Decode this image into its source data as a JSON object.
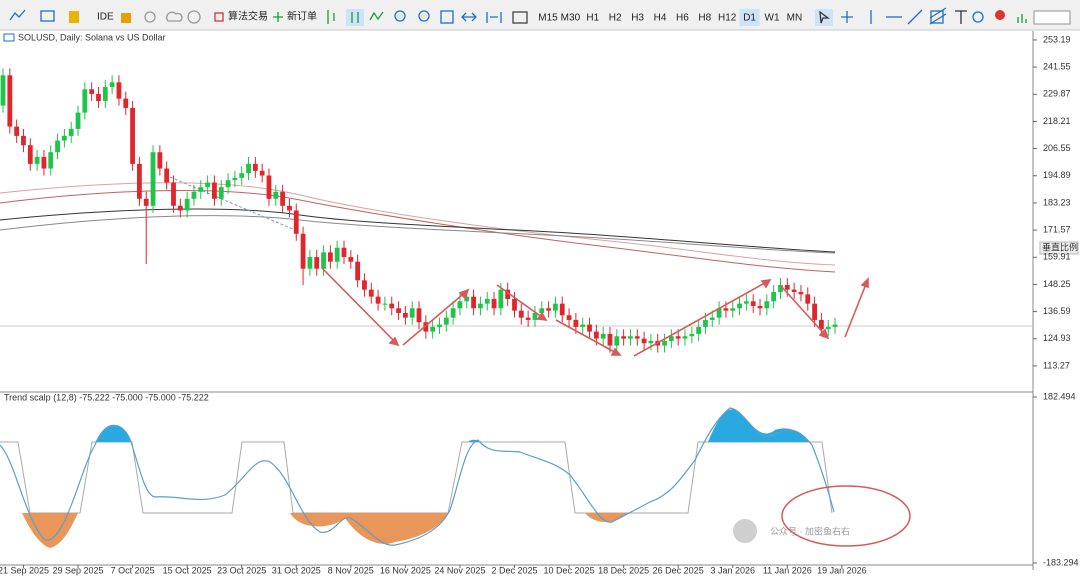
{
  "toolbar": {
    "ide": "IDE",
    "algo": "算法交易",
    "order": "新订单",
    "timeframes": [
      "M15",
      "M30",
      "H1",
      "H2",
      "H3",
      "H4",
      "H6",
      "H8",
      "H12",
      "D1",
      "W1",
      "MN"
    ],
    "active": "D1"
  },
  "chart_data": {
    "type": "candlestick",
    "title": "SOLUSD, Daily:  Solana vs US Dollar",
    "open": [
      225,
      238,
      216,
      212,
      208,
      200,
      203,
      198,
      205,
      210,
      212,
      215,
      222,
      232,
      230,
      227,
      233,
      235,
      228,
      224,
      200,
      185,
      182,
      205,
      198,
      192,
      182,
      180,
      185,
      188,
      190,
      192,
      185,
      190,
      193,
      194,
      196,
      200,
      197,
      195,
      185,
      188,
      182,
      180,
      170,
      155,
      160,
      155,
      162,
      158,
      164,
      160,
      158,
      150,
      146,
      143,
      140,
      140,
      138,
      136,
      134,
      138,
      132,
      128,
      130,
      131,
      134,
      138,
      141,
      143,
      138,
      140,
      142,
      138,
      146,
      142,
      137,
      134,
      133,
      136,
      138,
      137,
      140,
      135,
      133,
      130,
      131,
      128,
      125,
      127,
      122,
      126,
      125,
      126,
      125,
      123,
      124,
      122,
      124,
      126,
      125,
      126,
      127,
      130,
      133,
      134,
      138,
      137,
      138,
      140,
      141,
      139,
      138,
      141,
      145,
      148,
      146,
      145,
      144,
      140,
      133,
      129,
      130
    ],
    "high": [
      241,
      241,
      219,
      215,
      211,
      206,
      206,
      208,
      213,
      215,
      218,
      225,
      235,
      235,
      233,
      236,
      238,
      238,
      231,
      227,
      203,
      188,
      208,
      208,
      201,
      195,
      185,
      188,
      191,
      193,
      195,
      195,
      193,
      196,
      197,
      199,
      203,
      203,
      200,
      198,
      191,
      191,
      185,
      183,
      173,
      163,
      163,
      165,
      165,
      167,
      167,
      163,
      161,
      153,
      149,
      146,
      143,
      143,
      141,
      139,
      141,
      141,
      135,
      133,
      134,
      137,
      141,
      144,
      146,
      146,
      143,
      145,
      145,
      149,
      149,
      145,
      140,
      137,
      139,
      141,
      141,
      143,
      143,
      138,
      136,
      134,
      134,
      131,
      130,
      130,
      129,
      129,
      129,
      129,
      128,
      127,
      127,
      127,
      129,
      129,
      129,
      130,
      133,
      136,
      137,
      141,
      141,
      141,
      143,
      144,
      144,
      142,
      144,
      148,
      151,
      151,
      149,
      148,
      147,
      143,
      136,
      133,
      134
    ],
    "low": [
      222,
      213,
      209,
      205,
      197,
      197,
      195,
      195,
      202,
      207,
      209,
      212,
      219,
      227,
      224,
      224,
      230,
      225,
      221,
      197,
      182,
      157,
      179,
      195,
      189,
      179,
      177,
      177,
      182,
      185,
      187,
      182,
      182,
      187,
      190,
      191,
      193,
      194,
      192,
      182,
      182,
      179,
      177,
      167,
      148,
      152,
      152,
      152,
      155,
      155,
      157,
      155,
      147,
      143,
      140,
      137,
      137,
      135,
      133,
      131,
      131,
      129,
      125,
      125,
      127,
      128,
      131,
      135,
      138,
      135,
      135,
      137,
      135,
      135,
      139,
      134,
      131,
      130,
      130,
      133,
      134,
      134,
      132,
      130,
      127,
      127,
      125,
      122,
      122,
      119,
      119,
      122,
      122,
      122,
      120,
      120,
      119,
      119,
      121,
      122,
      122,
      123,
      124,
      127,
      130,
      131,
      134,
      134,
      135,
      137,
      136,
      135,
      135,
      138,
      142,
      143,
      142,
      141,
      137,
      130,
      126,
      126,
      127
    ],
    "close": [
      238,
      216,
      212,
      208,
      200,
      203,
      198,
      205,
      210,
      212,
      215,
      222,
      232,
      230,
      227,
      233,
      235,
      228,
      224,
      200,
      185,
      182,
      205,
      198,
      192,
      182,
      180,
      185,
      188,
      190,
      192,
      185,
      190,
      193,
      194,
      196,
      200,
      197,
      195,
      185,
      188,
      182,
      180,
      170,
      155,
      160,
      155,
      162,
      158,
      164,
      160,
      158,
      150,
      146,
      143,
      140,
      140,
      138,
      136,
      134,
      138,
      132,
      128,
      130,
      131,
      134,
      138,
      141,
      143,
      138,
      140,
      142,
      138,
      146,
      142,
      137,
      134,
      133,
      136,
      138,
      137,
      140,
      135,
      133,
      130,
      131,
      128,
      125,
      127,
      122,
      126,
      125,
      126,
      125,
      123,
      124,
      122,
      124,
      126,
      125,
      126,
      127,
      130,
      133,
      134,
      138,
      137,
      138,
      140,
      141,
      139,
      138,
      141,
      145,
      148,
      146,
      145,
      144,
      140,
      133,
      129,
      130,
      131
    ],
    "up_color": "#1fc44a",
    "down_color": "#e0262c",
    "ylim": [
      102.5,
      256.6
    ],
    "yticks": [
      253.19,
      241.55,
      229.87,
      218.21,
      206.55,
      194.89,
      183.23,
      171.57,
      159.91,
      148.25,
      136.59,
      124.93,
      113.27
    ],
    "date_labels": [
      "21 Sep 2025",
      "29 Sep 2025",
      "7 Oct 2025",
      "15 Oct 2025",
      "23 Oct 2025",
      "31 Oct 2025",
      "8 Nov 2025",
      "16 Nov 2025",
      "24 Nov 2025",
      "2 Dec 2025",
      "10 Dec 2025",
      "18 Dec 2025",
      "26 Dec 2025",
      "3 Jan 2026",
      "11 Jan 2026",
      "19 Jan 2026"
    ],
    "scale_label": "垂直比例"
  },
  "indicator": {
    "name": "Trend scalp (12,8) -75.222 -75.000 -75.000 -75.222",
    "ylim": [
      -198.7,
      191.3
    ],
    "yticks": [
      182.494,
      -183.294
    ]
  },
  "watermark": "公众号 · 加密鱼右右"
}
